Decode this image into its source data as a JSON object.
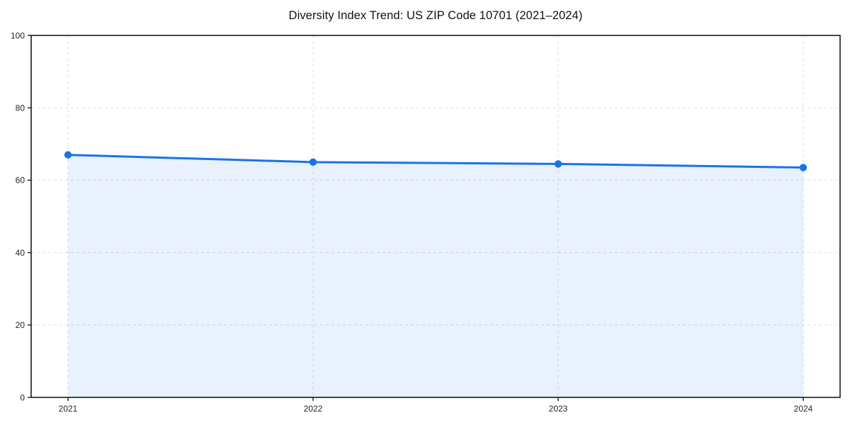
{
  "title": "Diversity Index Trend: US ZIP Code 10701 (2021–2024)",
  "chart_data": {
    "type": "area",
    "title": "Diversity Index Trend: US ZIP Code 10701 (2021–2024)",
    "categories": [
      "2021",
      "2022",
      "2023",
      "2024"
    ],
    "series": [
      {
        "name": "Diversity Index",
        "values": [
          67,
          65,
          64.5,
          63.5
        ]
      }
    ],
    "xlabel": "",
    "ylabel": "",
    "ylim": [
      0,
      100
    ],
    "yticks": [
      0,
      20,
      40,
      60,
      80,
      100
    ],
    "grid": true,
    "grid_style": "dashed",
    "legend_position": "none",
    "markers": "circle"
  },
  "style": {
    "background_color": "#ffffff",
    "line_color": "#1a73e8",
    "marker_color": "#1a73e8",
    "fill_color": "#1a73e8",
    "fill_opacity": 0.1,
    "grid_color": "#dedede",
    "spine_color": "#1a1a1a",
    "tick_label_color": "#262626",
    "title_color": "#111111"
  }
}
